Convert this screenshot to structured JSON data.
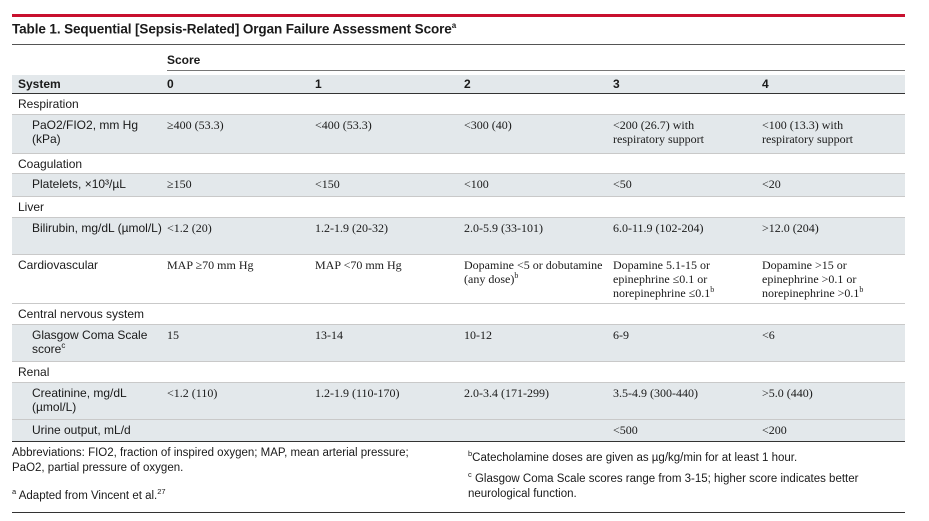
{
  "title": {
    "text": "Table 1. Sequential [Sepsis-Related] Organ Failure Assessment Score",
    "sup": "a"
  },
  "score_label": "Score",
  "columns": [
    "System",
    "0",
    "1",
    "2",
    "3",
    "4"
  ],
  "rows": [
    {
      "type": "group",
      "label": "Respiration"
    },
    {
      "type": "item",
      "label": "PaO2/FIO2, mm Hg (kPa)",
      "v0": "≥400 (53.3)",
      "v1": "<400 (53.3)",
      "v2": "<300 (40)",
      "v3": "<200 (26.7) with respiratory support",
      "v4": "<100 (13.3) with respiratory support"
    },
    {
      "type": "group",
      "label": "Coagulation"
    },
    {
      "type": "item",
      "label": "Platelets, ×10³/µL",
      "v0": "≥150",
      "v1": "<150",
      "v2": "<100",
      "v3": "<50",
      "v4": "<20"
    },
    {
      "type": "group",
      "label": "Liver"
    },
    {
      "type": "item",
      "label": "Bilirubin, mg/dL (µmol/L)",
      "v0": "<1.2 (20)",
      "v1": "1.2-1.9 (20-32)",
      "v2": "2.0-5.9 (33-101)",
      "v3": "6.0-11.9 (102-204)",
      "v4": ">12.0 (204)"
    },
    {
      "type": "group",
      "label": "Cardiovascular",
      "v0": "MAP ≥70 mm Hg",
      "v1": "MAP <70 mm Hg",
      "v2": "Dopamine <5 or dobutamine (any dose)",
      "v3": "Dopamine 5.1-15 or epinephrine ≤0.1 or norepinephrine ≤0.1",
      "v4": "Dopamine >15 or epinephrine >0.1 or norepinephrine >0.1"
    },
    {
      "type": "group",
      "label": "Central nervous system"
    },
    {
      "type": "item",
      "label": "Glasgow Coma Scale score",
      "v0": "15",
      "v1": "13-14",
      "v2": "10-12",
      "v3": "6-9",
      "v4": "<6"
    },
    {
      "type": "group",
      "label": "Renal"
    },
    {
      "type": "item",
      "label": "Creatinine, mg/dL (µmol/L)",
      "v0": "<1.2 (110)",
      "v1": "1.2-1.9 (110-170)",
      "v2": "2.0-3.4 (171-299)",
      "v3": "3.5-4.9 (300-440)",
      "v4": ">5.0 (440)"
    },
    {
      "type": "item",
      "label": "Urine output, mL/d",
      "v3": "<500",
      "v4": "<200"
    }
  ],
  "sup_b": "b",
  "sup_c": "c",
  "footnotes": {
    "abbrev": "Abbreviations: FIO2, fraction of inspired oxygen; MAP, mean arterial pressure; PaO2, partial pressure of oxygen.",
    "a_mark": "a",
    "a_text": "Adapted from Vincent et al.",
    "a_ref": "27",
    "b_mark": "b",
    "b_text": "Catecholamine doses are given as µg/kg/min for at least 1 hour.",
    "c_mark": "c",
    "c_text": "Glasgow Coma Scale scores range from 3-15; higher score indicates better neurological function."
  },
  "colors": {
    "accent": "#c8102e",
    "shade": "#e3e8eb"
  }
}
